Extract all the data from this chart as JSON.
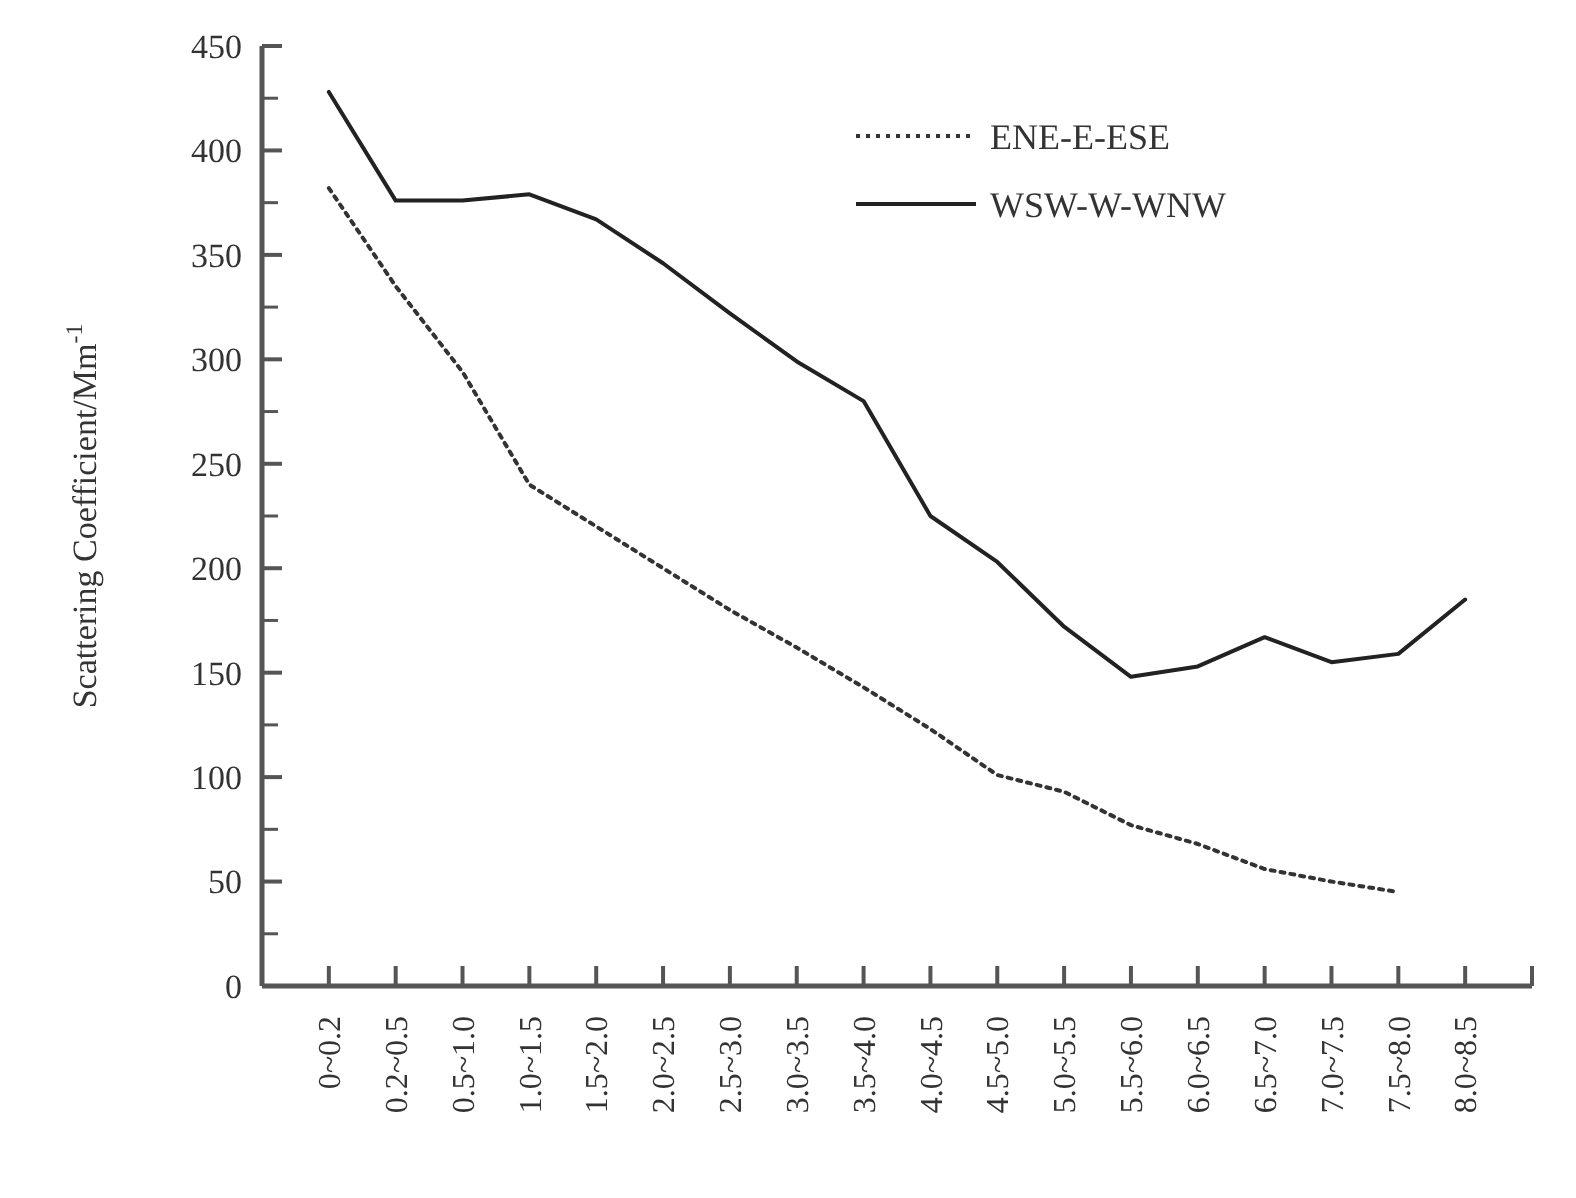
{
  "chart_data": {
    "type": "line",
    "ylabel": "Scattering Coefficient/Mm$^{-1}$",
    "categories": [
      "0~0.2",
      "0.2~0.5",
      "0.5~1.0",
      "1.0~1.5",
      "1.5~2.0",
      "2.0~2.5",
      "2.5~3.0",
      "3.0~3.5",
      "3.5~4.0",
      "4.0~4.5",
      "4.5~5.0",
      "5.0~5.5",
      "5.5~6.0",
      "6.0~6.5",
      "6.5~7.0",
      "7.0~7.5",
      "7.5~8.0",
      "8.0~8.5"
    ],
    "series": [
      {
        "name": "ENE-E-ESE",
        "color": "#333333",
        "line_style": "dotted",
        "values": [
          382,
          335,
          294,
          240,
          220,
          200,
          180,
          162,
          143,
          123,
          101,
          93,
          77,
          68,
          56,
          50,
          45,
          null
        ]
      },
      {
        "name": "WSW-W-WNW",
        "color": "#222222",
        "line_style": "solid",
        "values": [
          428,
          376,
          376,
          379,
          367,
          346,
          322,
          299,
          280,
          225,
          203,
          172,
          148,
          153,
          167,
          155,
          159,
          185
        ]
      }
    ],
    "ylim": [
      0,
      450
    ],
    "yticks": [
      0,
      50,
      100,
      150,
      200,
      250,
      300,
      350,
      400,
      450
    ],
    "grid": false,
    "legend": "top right",
    "marker": "none"
  }
}
